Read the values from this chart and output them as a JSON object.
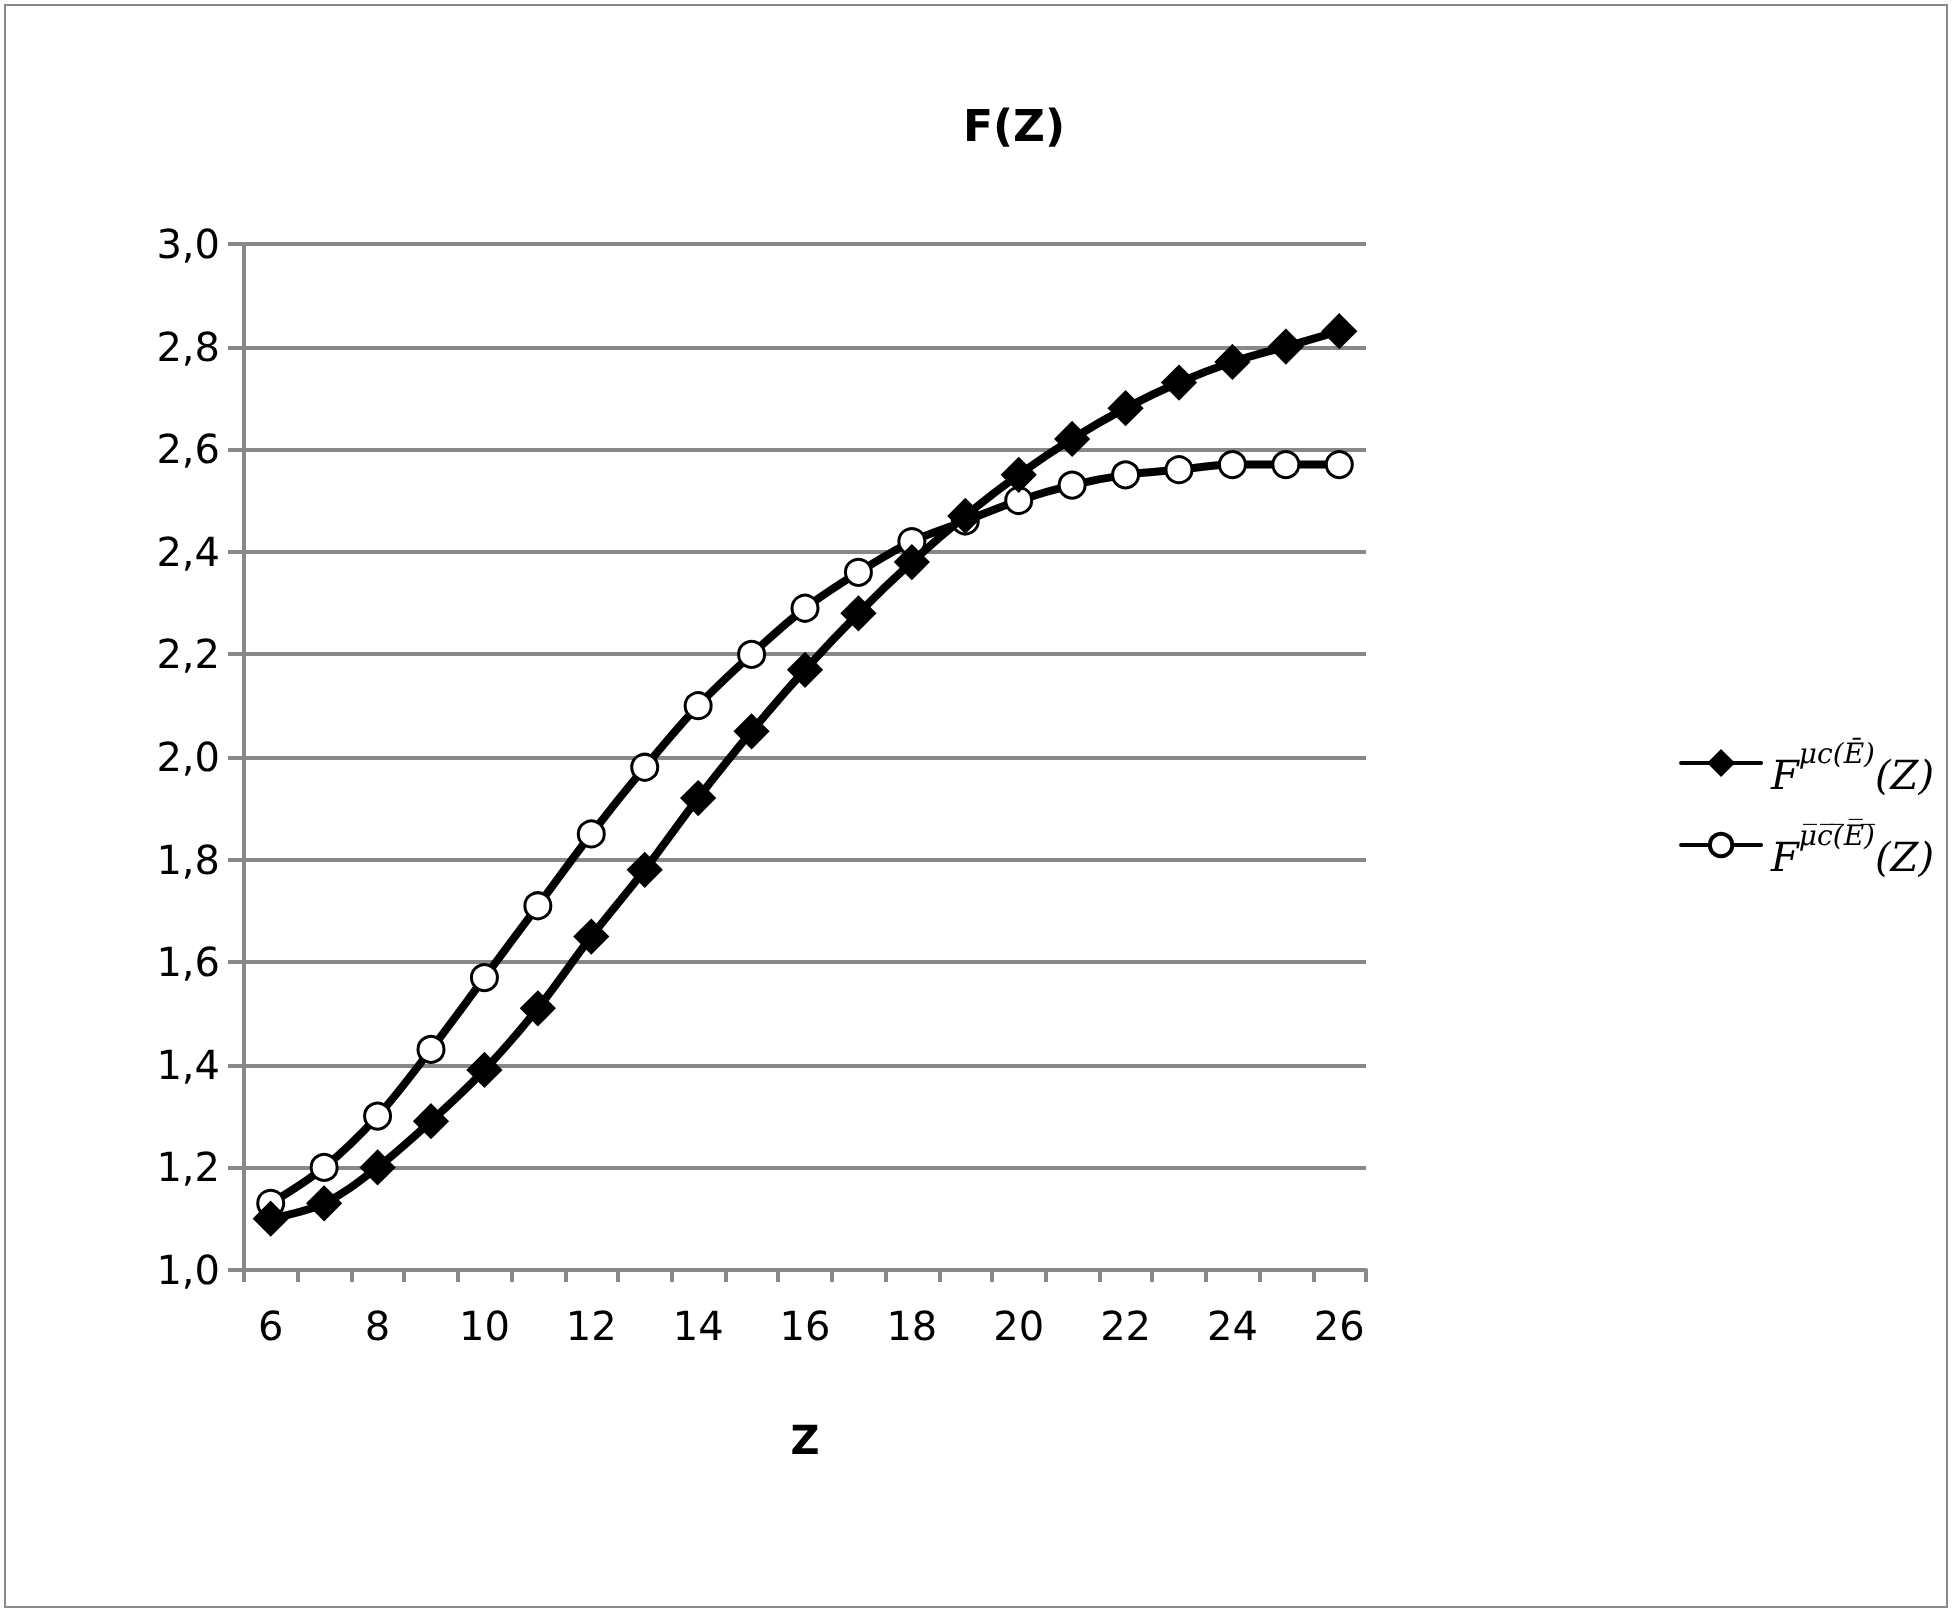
{
  "chart_data": {
    "type": "line",
    "title": "F(Z)",
    "xlabel": "Z",
    "categories": [
      "6",
      null,
      "8",
      null,
      "10",
      null,
      "12",
      null,
      "14",
      null,
      "16",
      null,
      "18",
      null,
      "20",
      null,
      "22",
      null,
      "24",
      null,
      "26"
    ],
    "series": [
      {
        "name": "F$^{μc(Ē)}$(Z)",
        "color": "#000000",
        "marker": "diamond",
        "values": [
          1.1,
          1.13,
          1.2,
          1.29,
          1.39,
          1.51,
          1.65,
          1.78,
          1.92,
          2.05,
          2.17,
          2.28,
          2.38,
          2.47,
          2.55,
          2.62,
          2.68,
          2.73,
          2.77,
          2.8,
          2.83
        ]
      },
      {
        "name": "F$^{μ̅c̅(̅E̅)̅}$(Z)",
        "color": "#000000",
        "marker": "circle",
        "values": [
          1.13,
          1.2,
          1.3,
          1.43,
          1.57,
          1.71,
          1.85,
          1.98,
          2.1,
          2.2,
          2.29,
          2.36,
          2.42,
          2.46,
          2.5,
          2.53,
          2.55,
          2.56,
          2.57,
          2.57,
          2.57
        ]
      }
    ],
    "ylim": [
      1.0,
      3.0
    ],
    "yticks": [
      {
        "value": 1.0,
        "label": "1,0"
      },
      {
        "value": 1.2,
        "label": "1,2"
      },
      {
        "value": 1.4,
        "label": "1,4"
      },
      {
        "value": 1.6,
        "label": "1,6"
      },
      {
        "value": 1.8,
        "label": "1,8"
      },
      {
        "value": 2.0,
        "label": "2,0"
      },
      {
        "value": 2.2,
        "label": "2,2"
      },
      {
        "value": 2.4,
        "label": "2,4"
      },
      {
        "value": 2.6,
        "label": "2,6"
      },
      {
        "value": 2.8,
        "label": "2,8"
      },
      {
        "value": 3.0,
        "label": "3,0"
      }
    ],
    "grid": "y",
    "legend": "right",
    "line_style": "solid"
  }
}
